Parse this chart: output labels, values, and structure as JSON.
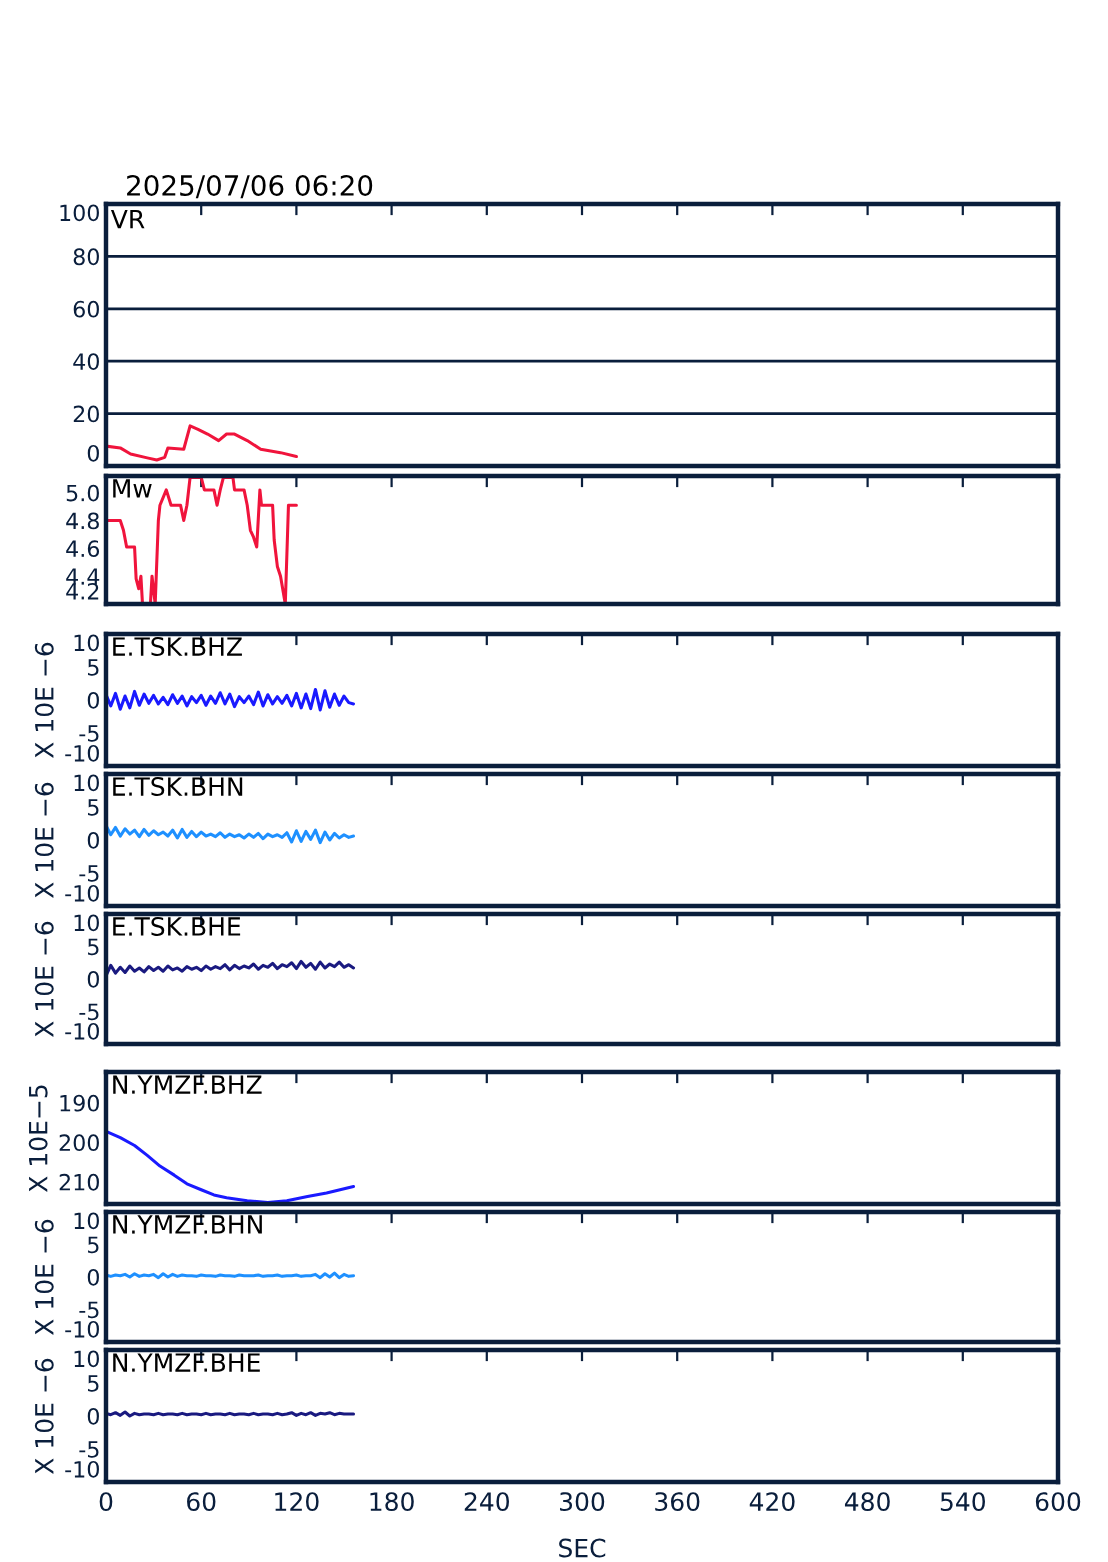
{
  "chart_data": [
    {
      "type": "line",
      "title": "VR",
      "annotations": [
        "2025/07/06 06:20"
      ],
      "x": [
        0,
        9,
        15.5,
        26,
        32,
        37,
        39,
        49,
        53,
        58,
        64,
        71,
        76,
        81,
        89,
        97.5,
        110,
        120
      ],
      "series": [
        {
          "color": "#f0143c",
          "values": [
            7.6,
            6.9,
            4.6,
            3.1,
            2.3,
            3.3,
            6.9,
            6.4,
            15.3,
            14,
            12.2,
            9.7,
            12.2,
            12.2,
            9.7,
            6.4,
            5.1,
            3.6
          ]
        }
      ],
      "xlim": [
        0,
        600
      ],
      "xticks": [
        0,
        60,
        120,
        180,
        240,
        300,
        360,
        420,
        480,
        540,
        600
      ],
      "ylim": [
        0,
        100
      ],
      "yticks": [
        0,
        20,
        40,
        60,
        80,
        100
      ],
      "grid": "y",
      "tick_labels": "y"
    },
    {
      "type": "line",
      "title": "Mw",
      "x": [
        0,
        9,
        11,
        13,
        18,
        19,
        20.6,
        22,
        23,
        28,
        29,
        31,
        33,
        34,
        38,
        41,
        47,
        49,
        51,
        53,
        60,
        62,
        68,
        70,
        72,
        74,
        80,
        81,
        87,
        89,
        91,
        93,
        95,
        97,
        98,
        105,
        106,
        108,
        110,
        113,
        115,
        120
      ],
      "series": [
        {
          "color": "#f0143c",
          "values": [
            4.8,
            4.8,
            4.73,
            4.61,
            4.61,
            4.38,
            4.31,
            4.4,
            4.2,
            4.2,
            4.4,
            4.2,
            4.8,
            4.91,
            5.02,
            4.91,
            4.91,
            4.8,
            4.91,
            5.11,
            5.11,
            5.02,
            5.02,
            4.91,
            5.02,
            5.11,
            5.11,
            5.02,
            5.02,
            4.91,
            4.73,
            4.68,
            4.61,
            5.02,
            4.91,
            4.91,
            4.66,
            4.47,
            4.4,
            4.2,
            4.91,
            4.91
          ]
        }
      ],
      "xlim": [
        0,
        600
      ],
      "xticks": [
        0,
        60,
        120,
        180,
        240,
        300,
        360,
        420,
        480,
        540,
        600
      ],
      "ylim": [
        4.2,
        5.12
      ],
      "yticks": [
        4.2,
        4.4,
        4.6,
        4.8,
        {
          "value": 5,
          "label": "5.0"
        }
      ],
      "tick_labels": "y"
    },
    {
      "type": "line",
      "title": "E.TSK.BHZ",
      "ylabel": "X 10E −6",
      "x": [
        0,
        3,
        6,
        9,
        12,
        15,
        18,
        21,
        24,
        27,
        30,
        33,
        36,
        39,
        42,
        45,
        48,
        51,
        54,
        57,
        60,
        63,
        66,
        69,
        72,
        75,
        78,
        81,
        84,
        87,
        90,
        93,
        96,
        99,
        102,
        105,
        108,
        111,
        114,
        117,
        120,
        123,
        126,
        129,
        132,
        135,
        138,
        141,
        144,
        147,
        150,
        153,
        156
      ],
      "series": [
        {
          "color": "#1a1aff",
          "values": [
            0.8,
            -0.9,
            1.0,
            -1.4,
            0.6,
            -1.2,
            1.3,
            -0.8,
            0.9,
            -0.5,
            0.7,
            -0.6,
            0.4,
            -0.7,
            0.8,
            -0.5,
            0.6,
            -0.9,
            0.5,
            -0.4,
            0.7,
            -0.8,
            0.6,
            -0.5,
            1.1,
            -0.6,
            0.9,
            -1.0,
            0.5,
            -0.4,
            0.6,
            -0.7,
            1.2,
            -0.9,
            0.8,
            -0.6,
            0.5,
            -0.5,
            0.7,
            -0.9,
            1.0,
            -1.2,
            0.9,
            -1.3,
            1.6,
            -1.5,
            1.4,
            -1.1,
            0.9,
            -0.8,
            0.6,
            -0.4,
            -0.6
          ]
        }
      ],
      "xlim": [
        0,
        600
      ],
      "xticks": [
        0,
        60,
        120,
        180,
        240,
        300,
        360,
        420,
        480,
        540,
        600
      ],
      "ylim": [
        -10,
        10
      ],
      "yticks": [
        -10,
        -5,
        0,
        5,
        10
      ],
      "tick_labels": "y"
    },
    {
      "type": "line",
      "title": "E.TSK.BHN",
      "ylabel": "X 10E −6",
      "x": [
        0,
        3,
        6,
        9,
        12,
        15,
        18,
        21,
        24,
        27,
        30,
        33,
        36,
        39,
        42,
        45,
        48,
        51,
        54,
        57,
        60,
        63,
        66,
        69,
        72,
        75,
        78,
        81,
        84,
        87,
        90,
        93,
        96,
        99,
        102,
        105,
        108,
        111,
        114,
        117,
        120,
        123,
        126,
        129,
        132,
        135,
        138,
        141,
        144,
        147,
        150,
        153,
        156
      ],
      "series": [
        {
          "color": "#1e90ff",
          "values": [
            2.2,
            0.8,
            1.9,
            0.6,
            1.7,
            0.9,
            1.5,
            0.5,
            1.6,
            0.7,
            1.4,
            0.8,
            1.2,
            0.6,
            1.5,
            0.3,
            1.6,
            0.4,
            1.3,
            0.5,
            1.2,
            0.6,
            0.9,
            0.5,
            1.1,
            0.4,
            0.9,
            0.5,
            0.8,
            0.3,
            0.9,
            0.4,
            1.0,
            0.2,
            0.9,
            0.5,
            0.8,
            0.4,
            1.1,
            -0.3,
            1.4,
            -0.2,
            1.3,
            0.1,
            1.5,
            -0.4,
            1.2,
            0.0,
            1.0,
            0.3,
            0.8,
            0.4,
            0.6
          ]
        }
      ],
      "xlim": [
        0,
        600
      ],
      "xticks": [
        0,
        60,
        120,
        180,
        240,
        300,
        360,
        420,
        480,
        540,
        600
      ],
      "ylim": [
        -10,
        10
      ],
      "yticks": [
        -10,
        -5,
        0,
        5,
        10
      ],
      "tick_labels": "y"
    },
    {
      "type": "line",
      "title": "E.TSK.BHE",
      "ylabel": "X 10E −6",
      "x": [
        0,
        3,
        6,
        9,
        12,
        15,
        18,
        21,
        24,
        27,
        30,
        33,
        36,
        39,
        42,
        45,
        48,
        51,
        54,
        57,
        60,
        63,
        66,
        69,
        72,
        75,
        78,
        81,
        84,
        87,
        90,
        93,
        96,
        99,
        102,
        105,
        108,
        111,
        114,
        117,
        120,
        123,
        126,
        129,
        132,
        135,
        138,
        141,
        144,
        147,
        150,
        153,
        156
      ],
      "series": [
        {
          "color": "#1a1a80",
          "values": [
            0.5,
            2.1,
            0.9,
            1.8,
            1.0,
            2.0,
            1.2,
            1.7,
            1.1,
            1.9,
            1.3,
            1.8,
            1.2,
            2.0,
            1.4,
            1.7,
            1.2,
            1.9,
            1.5,
            1.8,
            1.3,
            2.0,
            1.5,
            1.9,
            1.6,
            2.2,
            1.4,
            2.1,
            1.6,
            2.0,
            1.7,
            2.3,
            1.5,
            2.1,
            1.8,
            2.4,
            1.6,
            2.2,
            1.9,
            2.5,
            1.6,
            2.7,
            1.8,
            2.4,
            1.5,
            2.6,
            1.7,
            2.3,
            1.9,
            2.6,
            1.8,
            2.2,
            1.7
          ]
        }
      ],
      "xlim": [
        0,
        600
      ],
      "xticks": [
        0,
        60,
        120,
        180,
        240,
        300,
        360,
        420,
        480,
        540,
        600
      ],
      "ylim": [
        -10,
        10
      ],
      "yticks": [
        -10,
        -5,
        0,
        5,
        10
      ],
      "tick_labels": "y"
    },
    {
      "type": "line",
      "title": "N.YMZF.BHZ",
      "ylabel": "X 10E−5",
      "x": [
        0,
        9,
        18,
        26,
        34,
        43,
        51,
        60,
        68,
        76,
        89,
        102,
        114,
        127,
        139,
        156
      ],
      "series": [
        {
          "color": "#1a1aff",
          "values": [
            197.2,
            198.8,
            200.8,
            203.3,
            206,
            208.3,
            210.5,
            212,
            213.3,
            214,
            214.8,
            215.2,
            214.8,
            213.7,
            212.8,
            211.2
          ]
        }
      ],
      "xlim": [
        0,
        600
      ],
      "xticks": [
        0,
        60,
        120,
        180,
        240,
        300,
        360,
        420,
        480,
        540,
        600
      ],
      "ylim": [
        215.6,
        182.2
      ],
      "yticks": [
        190,
        200,
        210
      ],
      "tick_labels": "y"
    },
    {
      "type": "line",
      "title": "N.YMZF.BHN",
      "ylabel": "X 10E −6",
      "x": [
        0,
        3,
        6,
        9,
        12,
        15,
        18,
        21,
        24,
        27,
        30,
        33,
        36,
        39,
        42,
        45,
        48,
        51,
        54,
        57,
        60,
        63,
        66,
        69,
        72,
        75,
        78,
        81,
        84,
        87,
        90,
        93,
        96,
        99,
        102,
        105,
        108,
        111,
        114,
        117,
        120,
        123,
        126,
        129,
        132,
        135,
        138,
        141,
        144,
        147,
        150,
        153,
        156
      ],
      "series": [
        {
          "color": "#1e90ff",
          "values": [
            0.3,
            0.1,
            0.3,
            0.2,
            0.4,
            0.0,
            0.5,
            0.1,
            0.3,
            0.2,
            0.4,
            -0.1,
            0.5,
            0.0,
            0.4,
            0.1,
            0.3,
            0.2,
            0.2,
            0.1,
            0.3,
            0.2,
            0.2,
            0.1,
            0.3,
            0.2,
            0.2,
            0.1,
            0.3,
            0.2,
            0.2,
            0.2,
            0.3,
            0.1,
            0.2,
            0.2,
            0.3,
            0.1,
            0.2,
            0.2,
            0.3,
            0.1,
            0.2,
            0.2,
            0.4,
            -0.1,
            0.5,
            0.0,
            0.6,
            -0.1,
            0.4,
            0.1,
            0.2
          ]
        }
      ],
      "xlim": [
        0,
        600
      ],
      "xticks": [
        0,
        60,
        120,
        180,
        240,
        300,
        360,
        420,
        480,
        540,
        600
      ],
      "ylim": [
        -10,
        10
      ],
      "yticks": [
        -10,
        -5,
        0,
        5,
        10
      ],
      "tick_labels": "y"
    },
    {
      "type": "line",
      "title": "N.YMZF.BHE",
      "ylabel": "X 10E −6",
      "xlabel": "SEC",
      "x": [
        0,
        3,
        6,
        9,
        12,
        15,
        18,
        21,
        24,
        27,
        30,
        33,
        36,
        39,
        42,
        45,
        48,
        51,
        54,
        57,
        60,
        63,
        66,
        69,
        72,
        75,
        78,
        81,
        84,
        87,
        90,
        93,
        96,
        99,
        102,
        105,
        108,
        111,
        114,
        117,
        120,
        123,
        126,
        129,
        132,
        135,
        138,
        141,
        144,
        147,
        150,
        153,
        156
      ],
      "series": [
        {
          "color": "#1a1a80",
          "values": [
            0.4,
            0.2,
            0.5,
            0.1,
            0.6,
            0.0,
            0.4,
            0.2,
            0.3,
            0.3,
            0.2,
            0.4,
            0.2,
            0.3,
            0.3,
            0.2,
            0.4,
            0.2,
            0.3,
            0.3,
            0.2,
            0.4,
            0.2,
            0.3,
            0.3,
            0.2,
            0.4,
            0.2,
            0.3,
            0.3,
            0.2,
            0.4,
            0.2,
            0.3,
            0.3,
            0.2,
            0.4,
            0.2,
            0.3,
            0.5,
            0.1,
            0.4,
            0.2,
            0.5,
            0.1,
            0.4,
            0.3,
            0.5,
            0.2,
            0.4,
            0.3,
            0.3,
            0.3
          ]
        }
      ],
      "xlim": [
        0,
        600
      ],
      "xticks": [
        0,
        60,
        120,
        180,
        240,
        300,
        360,
        420,
        480,
        540,
        600
      ],
      "ylim": [
        -10,
        10
      ],
      "yticks": [
        -10,
        -5,
        0,
        5,
        10
      ]
    }
  ]
}
